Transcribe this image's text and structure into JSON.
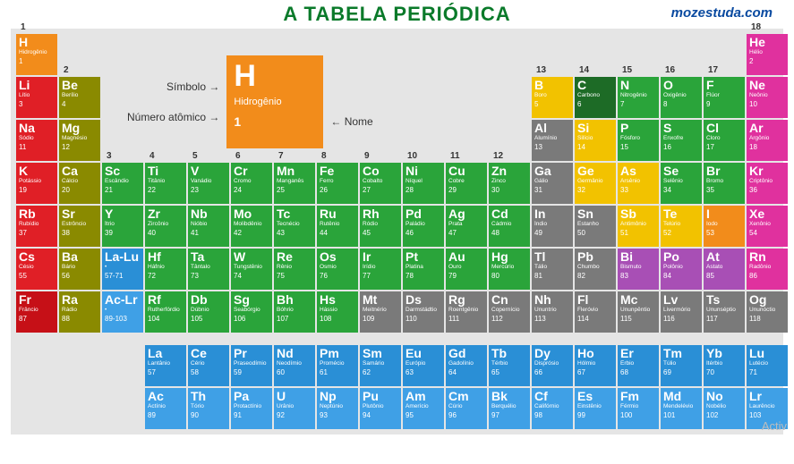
{
  "header": {
    "title": "A TABELA PERIÓDICA",
    "site": "mozestuda.com"
  },
  "legend": {
    "symbol_label": "Símbolo",
    "name_label": "Nome",
    "number_label": "Número atômico",
    "example": {
      "sym": "H",
      "name": "Hidrogênio",
      "num": "1",
      "color": "#f28c1b"
    }
  },
  "colors": {
    "orange": "#f28c1b",
    "red": "#e01f26",
    "darkred": "#c61017",
    "olive": "#8a8a00",
    "green": "#2aa43a",
    "darkgreen": "#1d6b26",
    "gray": "#7a7a7a",
    "yellow": "#f2c200",
    "purple": "#a84fb5",
    "magenta": "#e0319e",
    "blue": "#2a8fd6",
    "blue2": "#3fa0e6",
    "teal": "#4aa0c8",
    "bluegray": "#6aa6bf"
  },
  "column_labels": [
    "1",
    "2",
    "3",
    "4",
    "5",
    "6",
    "7",
    "8",
    "9",
    "10",
    "11",
    "12",
    "13",
    "14",
    "15",
    "16",
    "17",
    "18"
  ],
  "elements": [
    {
      "r": 1,
      "c": 1,
      "sym": "H",
      "name": "Hidrogênio",
      "num": "1",
      "col": "orange"
    },
    {
      "r": 1,
      "c": 18,
      "sym": "He",
      "name": "Hélio",
      "num": "2",
      "col": "magenta"
    },
    {
      "r": 2,
      "c": 1,
      "sym": "Li",
      "name": "Lítio",
      "num": "3",
      "col": "red"
    },
    {
      "r": 2,
      "c": 2,
      "sym": "Be",
      "name": "Berílio",
      "num": "4",
      "col": "olive"
    },
    {
      "r": 2,
      "c": 13,
      "sym": "B",
      "name": "Boro",
      "num": "5",
      "col": "yellow"
    },
    {
      "r": 2,
      "c": 14,
      "sym": "C",
      "name": "Carbono",
      "num": "6",
      "col": "darkgreen"
    },
    {
      "r": 2,
      "c": 15,
      "sym": "N",
      "name": "Nitrogênio",
      "num": "7",
      "col": "green"
    },
    {
      "r": 2,
      "c": 16,
      "sym": "O",
      "name": "Oxigênio",
      "num": "8",
      "col": "green"
    },
    {
      "r": 2,
      "c": 17,
      "sym": "F",
      "name": "Flúor",
      "num": "9",
      "col": "green"
    },
    {
      "r": 2,
      "c": 18,
      "sym": "Ne",
      "name": "Neônio",
      "num": "10",
      "col": "magenta"
    },
    {
      "r": 3,
      "c": 1,
      "sym": "Na",
      "name": "Sódio",
      "num": "11",
      "col": "red"
    },
    {
      "r": 3,
      "c": 2,
      "sym": "Mg",
      "name": "Magnésio",
      "num": "12",
      "col": "olive"
    },
    {
      "r": 3,
      "c": 13,
      "sym": "Al",
      "name": "Alumínio",
      "num": "13",
      "col": "gray"
    },
    {
      "r": 3,
      "c": 14,
      "sym": "Si",
      "name": "Silício",
      "num": "14",
      "col": "yellow"
    },
    {
      "r": 3,
      "c": 15,
      "sym": "P",
      "name": "Fósforo",
      "num": "15",
      "col": "green"
    },
    {
      "r": 3,
      "c": 16,
      "sym": "S",
      "name": "Enxofre",
      "num": "16",
      "col": "green"
    },
    {
      "r": 3,
      "c": 17,
      "sym": "Cl",
      "name": "Cloro",
      "num": "17",
      "col": "green"
    },
    {
      "r": 3,
      "c": 18,
      "sym": "Ar",
      "name": "Argônio",
      "num": "18",
      "col": "magenta"
    },
    {
      "r": 4,
      "c": 1,
      "sym": "K",
      "name": "Potássio",
      "num": "19",
      "col": "red"
    },
    {
      "r": 4,
      "c": 2,
      "sym": "Ca",
      "name": "Cálcio",
      "num": "20",
      "col": "olive"
    },
    {
      "r": 4,
      "c": 3,
      "sym": "Sc",
      "name": "Escândio",
      "num": "21",
      "col": "green"
    },
    {
      "r": 4,
      "c": 4,
      "sym": "Ti",
      "name": "Titânio",
      "num": "22",
      "col": "green"
    },
    {
      "r": 4,
      "c": 5,
      "sym": "V",
      "name": "Vanádio",
      "num": "23",
      "col": "green"
    },
    {
      "r": 4,
      "c": 6,
      "sym": "Cr",
      "name": "Cromo",
      "num": "24",
      "col": "green"
    },
    {
      "r": 4,
      "c": 7,
      "sym": "Mn",
      "name": "Manganês",
      "num": "25",
      "col": "green"
    },
    {
      "r": 4,
      "c": 8,
      "sym": "Fe",
      "name": "Ferro",
      "num": "26",
      "col": "green"
    },
    {
      "r": 4,
      "c": 9,
      "sym": "Co",
      "name": "Cobalto",
      "num": "27",
      "col": "green"
    },
    {
      "r": 4,
      "c": 10,
      "sym": "Ni",
      "name": "Níquel",
      "num": "28",
      "col": "green"
    },
    {
      "r": 4,
      "c": 11,
      "sym": "Cu",
      "name": "Cobre",
      "num": "29",
      "col": "green"
    },
    {
      "r": 4,
      "c": 12,
      "sym": "Zn",
      "name": "Zinco",
      "num": "30",
      "col": "green"
    },
    {
      "r": 4,
      "c": 13,
      "sym": "Ga",
      "name": "Gálio",
      "num": "31",
      "col": "gray"
    },
    {
      "r": 4,
      "c": 14,
      "sym": "Ge",
      "name": "Germânio",
      "num": "32",
      "col": "yellow"
    },
    {
      "r": 4,
      "c": 15,
      "sym": "As",
      "name": "Arsênio",
      "num": "33",
      "col": "yellow"
    },
    {
      "r": 4,
      "c": 16,
      "sym": "Se",
      "name": "Selênio",
      "num": "34",
      "col": "green"
    },
    {
      "r": 4,
      "c": 17,
      "sym": "Br",
      "name": "Bromo",
      "num": "35",
      "col": "green"
    },
    {
      "r": 4,
      "c": 18,
      "sym": "Kr",
      "name": "Criptônio",
      "num": "36",
      "col": "magenta"
    },
    {
      "r": 5,
      "c": 1,
      "sym": "Rb",
      "name": "Rubídio",
      "num": "37",
      "col": "red"
    },
    {
      "r": 5,
      "c": 2,
      "sym": "Sr",
      "name": "Estrôncio",
      "num": "38",
      "col": "olive"
    },
    {
      "r": 5,
      "c": 3,
      "sym": "Y",
      "name": "Ítrio",
      "num": "39",
      "col": "green"
    },
    {
      "r": 5,
      "c": 4,
      "sym": "Zr",
      "name": "Zircônio",
      "num": "40",
      "col": "green"
    },
    {
      "r": 5,
      "c": 5,
      "sym": "Nb",
      "name": "Nióbio",
      "num": "41",
      "col": "green"
    },
    {
      "r": 5,
      "c": 6,
      "sym": "Mo",
      "name": "Molibdênio",
      "num": "42",
      "col": "green"
    },
    {
      "r": 5,
      "c": 7,
      "sym": "Tc",
      "name": "Tecnécio",
      "num": "43",
      "col": "green"
    },
    {
      "r": 5,
      "c": 8,
      "sym": "Ru",
      "name": "Rutênio",
      "num": "44",
      "col": "green"
    },
    {
      "r": 5,
      "c": 9,
      "sym": "Rh",
      "name": "Ródio",
      "num": "45",
      "col": "green"
    },
    {
      "r": 5,
      "c": 10,
      "sym": "Pd",
      "name": "Paládio",
      "num": "46",
      "col": "green"
    },
    {
      "r": 5,
      "c": 11,
      "sym": "Ag",
      "name": "Prata",
      "num": "47",
      "col": "green"
    },
    {
      "r": 5,
      "c": 12,
      "sym": "Cd",
      "name": "Cádmio",
      "num": "48",
      "col": "green"
    },
    {
      "r": 5,
      "c": 13,
      "sym": "In",
      "name": "Índio",
      "num": "49",
      "col": "gray"
    },
    {
      "r": 5,
      "c": 14,
      "sym": "Sn",
      "name": "Estanho",
      "num": "50",
      "col": "gray"
    },
    {
      "r": 5,
      "c": 15,
      "sym": "Sb",
      "name": "Antimônio",
      "num": "51",
      "col": "yellow"
    },
    {
      "r": 5,
      "c": 16,
      "sym": "Te",
      "name": "Telúrio",
      "num": "52",
      "col": "yellow"
    },
    {
      "r": 5,
      "c": 17,
      "sym": "I",
      "name": "Iodo",
      "num": "53",
      "col": "orange"
    },
    {
      "r": 5,
      "c": 18,
      "sym": "Xe",
      "name": "Xenônio",
      "num": "54",
      "col": "magenta"
    },
    {
      "r": 6,
      "c": 1,
      "sym": "Cs",
      "name": "Césio",
      "num": "55",
      "col": "red"
    },
    {
      "r": 6,
      "c": 2,
      "sym": "Ba",
      "name": "Bário",
      "num": "56",
      "col": "olive"
    },
    {
      "r": 6,
      "c": 3,
      "sym": "La-Lu",
      "name": "•",
      "num": "57-71",
      "col": "blue"
    },
    {
      "r": 6,
      "c": 4,
      "sym": "Hf",
      "name": "Háfnio",
      "num": "72",
      "col": "green"
    },
    {
      "r": 6,
      "c": 5,
      "sym": "Ta",
      "name": "Tântalo",
      "num": "73",
      "col": "green"
    },
    {
      "r": 6,
      "c": 6,
      "sym": "W",
      "name": "Tungstênio",
      "num": "74",
      "col": "green"
    },
    {
      "r": 6,
      "c": 7,
      "sym": "Re",
      "name": "Rênio",
      "num": "75",
      "col": "green"
    },
    {
      "r": 6,
      "c": 8,
      "sym": "Os",
      "name": "Ósmio",
      "num": "76",
      "col": "green"
    },
    {
      "r": 6,
      "c": 9,
      "sym": "Ir",
      "name": "Irídio",
      "num": "77",
      "col": "green"
    },
    {
      "r": 6,
      "c": 10,
      "sym": "Pt",
      "name": "Platina",
      "num": "78",
      "col": "green"
    },
    {
      "r": 6,
      "c": 11,
      "sym": "Au",
      "name": "Ouro",
      "num": "79",
      "col": "green"
    },
    {
      "r": 6,
      "c": 12,
      "sym": "Hg",
      "name": "Mercúrio",
      "num": "80",
      "col": "green"
    },
    {
      "r": 6,
      "c": 13,
      "sym": "Tl",
      "name": "Tálio",
      "num": "81",
      "col": "gray"
    },
    {
      "r": 6,
      "c": 14,
      "sym": "Pb",
      "name": "Chumbo",
      "num": "82",
      "col": "gray"
    },
    {
      "r": 6,
      "c": 15,
      "sym": "Bi",
      "name": "Bismuto",
      "num": "83",
      "col": "purple"
    },
    {
      "r": 6,
      "c": 16,
      "sym": "Po",
      "name": "Polônio",
      "num": "84",
      "col": "purple"
    },
    {
      "r": 6,
      "c": 17,
      "sym": "At",
      "name": "Astato",
      "num": "85",
      "col": "purple"
    },
    {
      "r": 6,
      "c": 18,
      "sym": "Rn",
      "name": "Radônio",
      "num": "86",
      "col": "magenta"
    },
    {
      "r": 7,
      "c": 1,
      "sym": "Fr",
      "name": "Frâncio",
      "num": "87",
      "col": "darkred"
    },
    {
      "r": 7,
      "c": 2,
      "sym": "Ra",
      "name": "Rádio",
      "num": "88",
      "col": "olive"
    },
    {
      "r": 7,
      "c": 3,
      "sym": "Ac-Lr",
      "name": "•",
      "num": "89-103",
      "col": "blue2"
    },
    {
      "r": 7,
      "c": 4,
      "sym": "Rf",
      "name": "Rutherfórdio",
      "num": "104",
      "col": "green"
    },
    {
      "r": 7,
      "c": 5,
      "sym": "Db",
      "name": "Dúbnio",
      "num": "105",
      "col": "green"
    },
    {
      "r": 7,
      "c": 6,
      "sym": "Sg",
      "name": "Seabórgio",
      "num": "106",
      "col": "green"
    },
    {
      "r": 7,
      "c": 7,
      "sym": "Bh",
      "name": "Bóhrio",
      "num": "107",
      "col": "green"
    },
    {
      "r": 7,
      "c": 8,
      "sym": "Hs",
      "name": "Hássio",
      "num": "108",
      "col": "green"
    },
    {
      "r": 7,
      "c": 9,
      "sym": "Mt",
      "name": "Meitnério",
      "num": "109",
      "col": "gray"
    },
    {
      "r": 7,
      "c": 10,
      "sym": "Ds",
      "name": "Darmstádtio",
      "num": "110",
      "col": "gray"
    },
    {
      "r": 7,
      "c": 11,
      "sym": "Rg",
      "name": "Roentgênio",
      "num": "111",
      "col": "gray"
    },
    {
      "r": 7,
      "c": 12,
      "sym": "Cn",
      "name": "Copernício",
      "num": "112",
      "col": "gray"
    },
    {
      "r": 7,
      "c": 13,
      "sym": "Nh",
      "name": "Ununtrio",
      "num": "113",
      "col": "gray"
    },
    {
      "r": 7,
      "c": 14,
      "sym": "Fl",
      "name": "Fleróvio",
      "num": "114",
      "col": "gray"
    },
    {
      "r": 7,
      "c": 15,
      "sym": "Mc",
      "name": "Ununpêntio",
      "num": "115",
      "col": "gray"
    },
    {
      "r": 7,
      "c": 16,
      "sym": "Lv",
      "name": "Livermório",
      "num": "116",
      "col": "gray"
    },
    {
      "r": 7,
      "c": 17,
      "sym": "Ts",
      "name": "Ununséptio",
      "num": "117",
      "col": "gray"
    },
    {
      "r": 7,
      "c": 18,
      "sym": "Og",
      "name": "Ununóctio",
      "num": "118",
      "col": "gray"
    }
  ],
  "lanthanides": [
    {
      "sym": "La",
      "name": "Lantânio",
      "num": "57"
    },
    {
      "sym": "Ce",
      "name": "Cério",
      "num": "58"
    },
    {
      "sym": "Pr",
      "name": "Praseodímio",
      "num": "59"
    },
    {
      "sym": "Nd",
      "name": "Neodímio",
      "num": "60"
    },
    {
      "sym": "Pm",
      "name": "Promécio",
      "num": "61"
    },
    {
      "sym": "Sm",
      "name": "Samário",
      "num": "62"
    },
    {
      "sym": "Eu",
      "name": "Európio",
      "num": "63"
    },
    {
      "sym": "Gd",
      "name": "Gadolínio",
      "num": "64"
    },
    {
      "sym": "Tb",
      "name": "Térbio",
      "num": "65"
    },
    {
      "sym": "Dy",
      "name": "Disprósio",
      "num": "66"
    },
    {
      "sym": "Ho",
      "name": "Hólmio",
      "num": "67"
    },
    {
      "sym": "Er",
      "name": "Érbio",
      "num": "68"
    },
    {
      "sym": "Tm",
      "name": "Túlio",
      "num": "69"
    },
    {
      "sym": "Yb",
      "name": "Itérbio",
      "num": "70"
    },
    {
      "sym": "Lu",
      "name": "Lutécio",
      "num": "71"
    }
  ],
  "actinides": [
    {
      "sym": "Ac",
      "name": "Actínio",
      "num": "89"
    },
    {
      "sym": "Th",
      "name": "Tório",
      "num": "90"
    },
    {
      "sym": "Pa",
      "name": "Protactínio",
      "num": "91"
    },
    {
      "sym": "U",
      "name": "Urânio",
      "num": "92"
    },
    {
      "sym": "Np",
      "name": "Neptúnio",
      "num": "93"
    },
    {
      "sym": "Pu",
      "name": "Plutônio",
      "num": "94"
    },
    {
      "sym": "Am",
      "name": "Amerício",
      "num": "95"
    },
    {
      "sym": "Cm",
      "name": "Cúrio",
      "num": "96"
    },
    {
      "sym": "Bk",
      "name": "Berquélio",
      "num": "97"
    },
    {
      "sym": "Cf",
      "name": "Califórnio",
      "num": "98"
    },
    {
      "sym": "Es",
      "name": "Einstênio",
      "num": "99"
    },
    {
      "sym": "Fm",
      "name": "Férmio",
      "num": "100"
    },
    {
      "sym": "Md",
      "name": "Mendelévio",
      "num": "101"
    },
    {
      "sym": "No",
      "name": "Nobélio",
      "num": "102"
    },
    {
      "sym": "Lr",
      "name": "Laurêncio",
      "num": "103"
    }
  ],
  "watermark": "Activ"
}
